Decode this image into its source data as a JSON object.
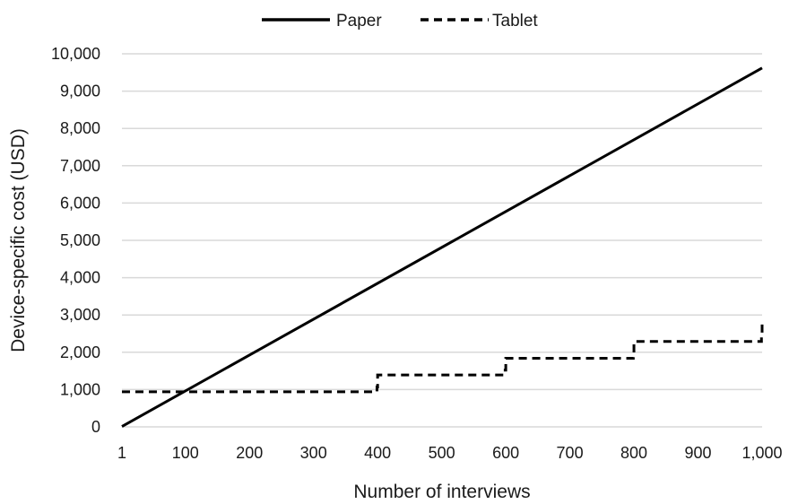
{
  "chart_data": {
    "type": "line",
    "xlabel": "Number of interviews",
    "ylabel": "Device-specific cost (USD)",
    "x_ticks": [
      1,
      100,
      200,
      300,
      400,
      500,
      600,
      700,
      800,
      900,
      1000
    ],
    "x_tick_labels": [
      "1",
      "100",
      "200",
      "300",
      "400",
      "500",
      "600",
      "700",
      "800",
      "900",
      "1,000"
    ],
    "y_ticks": [
      0,
      1000,
      2000,
      3000,
      4000,
      5000,
      6000,
      7000,
      8000,
      9000,
      10000
    ],
    "y_tick_labels": [
      "0",
      "1,000",
      "2,000",
      "3,000",
      "4,000",
      "5,000",
      "6,000",
      "7,000",
      "8,000",
      "9,000",
      "10,000"
    ],
    "xlim": [
      1,
      1000
    ],
    "ylim": [
      0,
      10000
    ],
    "grid": "horizontal",
    "legend_position": "top-center",
    "series": [
      {
        "name": "Paper",
        "style": "solid",
        "color": "#000000",
        "points": [
          [
            1,
            10
          ],
          [
            1000,
            9620
          ]
        ]
      },
      {
        "name": "Tablet",
        "style": "dashed",
        "color": "#000000",
        "points": [
          [
            1,
            940
          ],
          [
            399,
            940
          ],
          [
            399,
            1070
          ],
          [
            400,
            1070
          ],
          [
            400,
            1390
          ],
          [
            599,
            1390
          ],
          [
            599,
            1520
          ],
          [
            600,
            1520
          ],
          [
            600,
            1840
          ],
          [
            799,
            1840
          ],
          [
            799,
            1970
          ],
          [
            800,
            1970
          ],
          [
            800,
            2290
          ],
          [
            999,
            2290
          ],
          [
            999,
            2420
          ],
          [
            1000,
            2420
          ],
          [
            1000,
            2760
          ]
        ]
      }
    ]
  }
}
